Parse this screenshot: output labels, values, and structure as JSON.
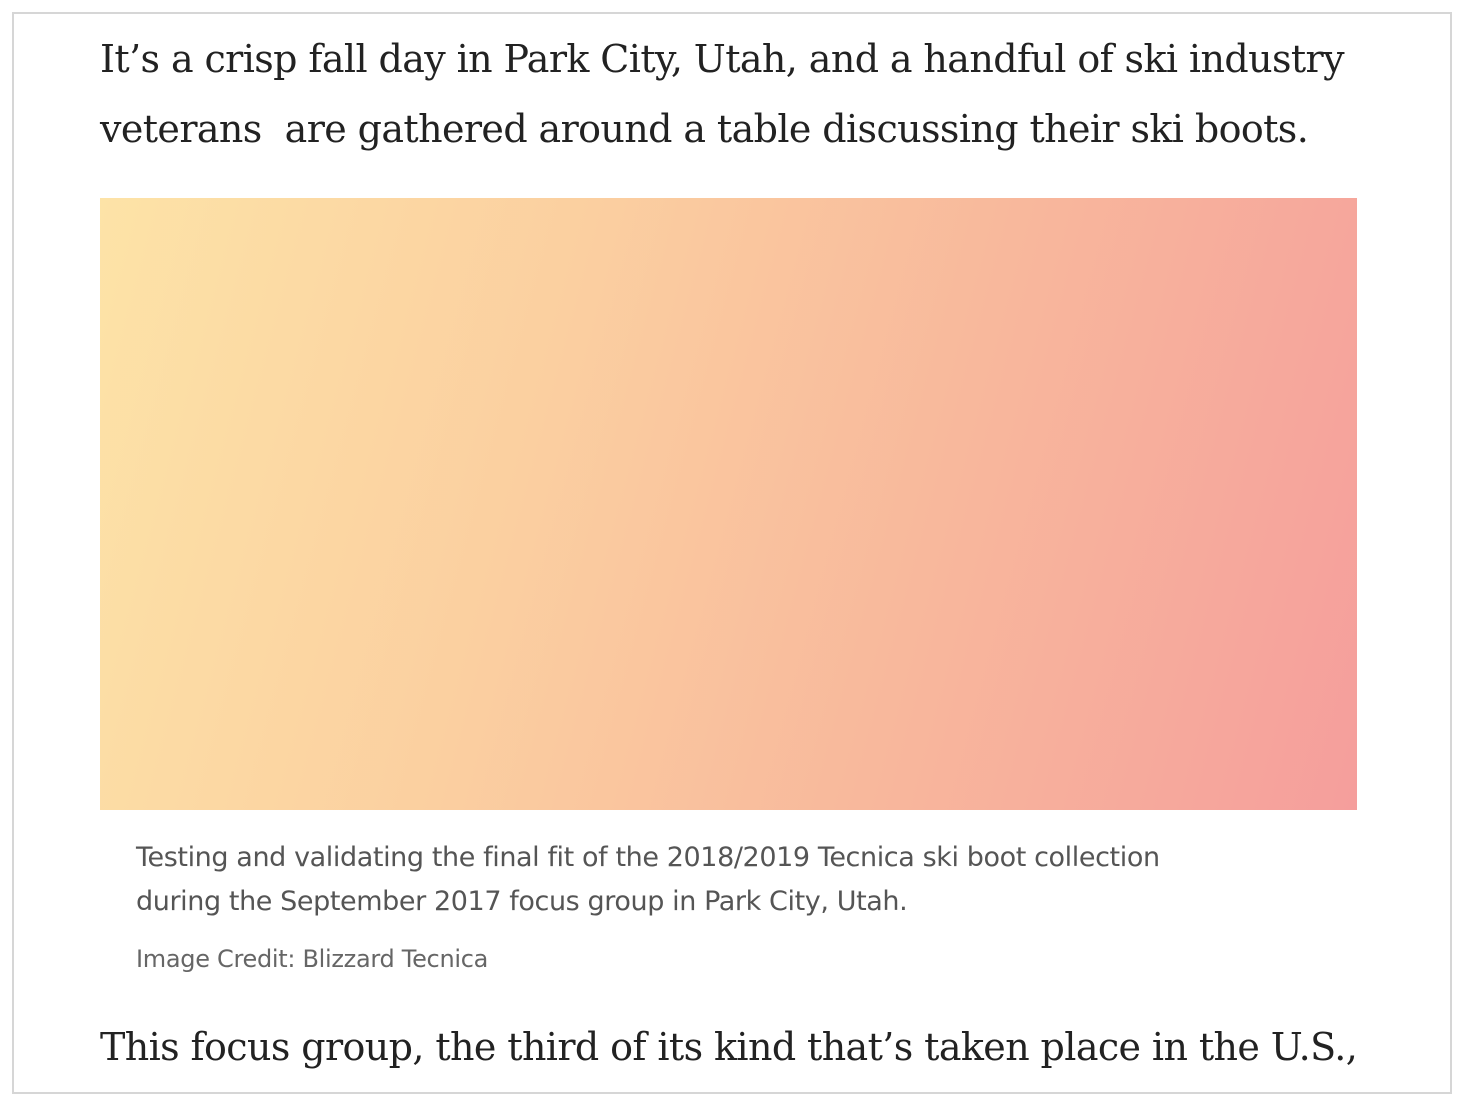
{
  "article": {
    "intro_line_1": "It’s a crisp fall day in Park City, Utah, and a handful of ski industry",
    "intro_line_2": "veterans  are gathered around a table discussing their ski boots.",
    "figure": {
      "caption_line_1": "Testing and validating the final fit of the 2018/2019 Tecnica ski boot collection",
      "caption_line_2": "during the September 2017 focus group in Park City, Utah.",
      "credit": "Image Credit: Blizzard Tecnica",
      "gradient_colors": [
        "#fde3a7",
        "#fbcfa0",
        "#f8b89c",
        "#f59e9c"
      ]
    },
    "next_line": "This focus group, the third of its kind that’s taken place in the U.S.,"
  }
}
